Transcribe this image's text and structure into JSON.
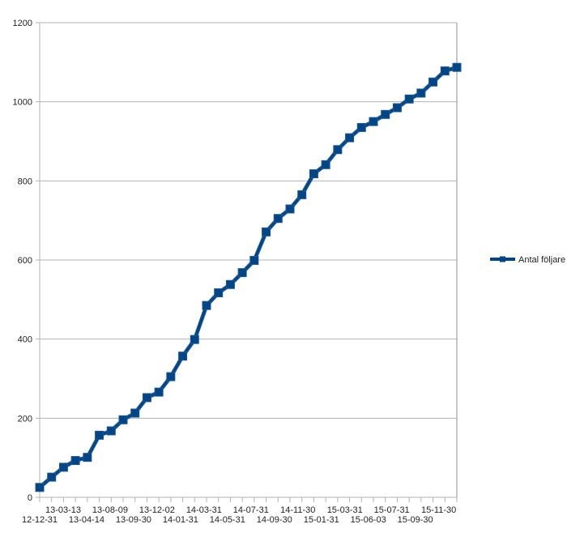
{
  "chart_data": {
    "type": "line",
    "title": "",
    "xlabel": "",
    "ylabel": "",
    "ylim": [
      0,
      1200
    ],
    "yticks": [
      0,
      200,
      400,
      600,
      800,
      1000,
      1200
    ],
    "grid": true,
    "legend_position": "right",
    "x_tick_labels": [
      "12-12-31",
      "13-03-13",
      "13-04-14",
      "13-08-09",
      "13-09-30",
      "13-12-02",
      "14-01-31",
      "14-03-31",
      "14-05-31",
      "14-07-31",
      "14-09-30",
      "14-11-30",
      "15-01-31",
      "15-03-31",
      "15-06-03",
      "15-07-31",
      "15-09-30",
      "15-11-30"
    ],
    "series": [
      {
        "name": "Antal följare",
        "color": "#004586",
        "marker": "square",
        "values": [
          25,
          51,
          76,
          93,
          101,
          157,
          168,
          196,
          213,
          252,
          266,
          305,
          357,
          399,
          485,
          517,
          538,
          568,
          599,
          671,
          705,
          729,
          765,
          818,
          841,
          879,
          909,
          935,
          950,
          968,
          985,
          1007,
          1022,
          1050,
          1078,
          1087
        ]
      }
    ]
  },
  "legend": {
    "label": "Antal följare"
  },
  "colors": {
    "series": "#004586",
    "grid": "#b3b3b3",
    "axis": "#b3b3b3",
    "text": "#222222"
  }
}
